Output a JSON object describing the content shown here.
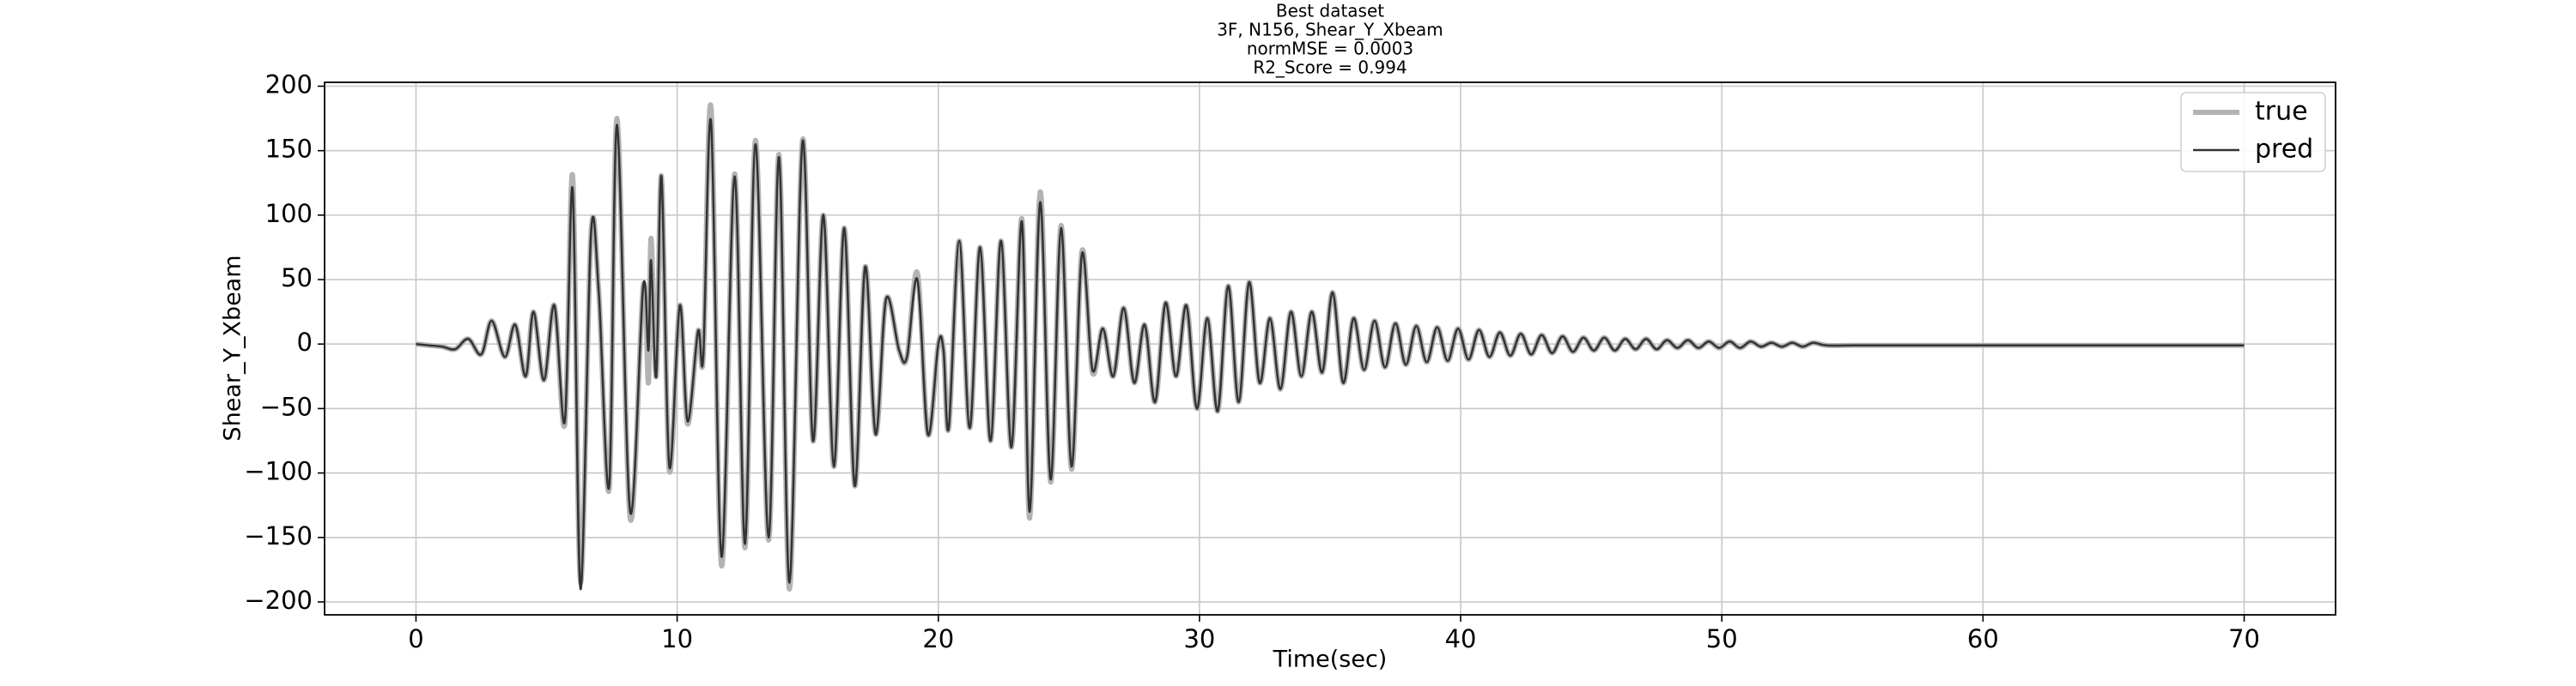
{
  "chart_data": {
    "type": "line",
    "title": [
      "Best dataset",
      "3F, N156, Shear_Y_Xbeam",
      "normMSE = 0.0003",
      "R2_Score = 0.994"
    ],
    "x_label": "Time(sec)",
    "y_label": "Shear_Y_Xbeam",
    "xlim": [
      -3.5,
      73.5
    ],
    "ylim": [
      -210,
      203
    ],
    "xticks": [
      0,
      10,
      20,
      30,
      40,
      50,
      60,
      70
    ],
    "yticks": [
      {
        "value": -200,
        "label": "−200"
      },
      {
        "value": -150,
        "label": "−150"
      },
      {
        "value": -100,
        "label": "−100"
      },
      {
        "value": -50,
        "label": "−50"
      },
      0,
      50,
      100,
      150,
      200
    ],
    "grid": true,
    "legend": "upper right",
    "x": [
      0,
      0.5,
      1.0,
      1.5,
      2.0,
      2.5,
      2.9,
      3.4,
      3.8,
      4.2,
      4.5,
      4.9,
      5.3,
      5.7,
      6.0,
      6.3,
      6.7,
      7.0,
      7.4,
      7.7,
      8.2,
      8.7,
      8.9,
      9.0,
      9.2,
      9.4,
      9.7,
      10.1,
      10.4,
      10.8,
      11.0,
      11.3,
      11.7,
      12.2,
      12.6,
      13.0,
      13.5,
      13.9,
      14.3,
      14.8,
      15.2,
      15.6,
      16.0,
      16.4,
      16.8,
      17.2,
      17.6,
      18.0,
      18.5,
      18.8,
      19.2,
      19.6,
      20.0,
      20.2,
      20.4,
      20.8,
      21.2,
      21.6,
      22.0,
      22.4,
      22.8,
      23.2,
      23.5,
      23.9,
      24.3,
      24.7,
      25.1,
      25.5,
      25.9,
      26.3,
      26.7,
      27.1,
      27.5,
      27.9,
      28.3,
      28.7,
      29.1,
      29.5,
      29.9,
      30.3,
      30.7,
      31.1,
      31.5,
      31.9,
      32.3,
      32.7,
      33.1,
      33.5,
      33.9,
      34.3,
      34.7,
      35.1,
      35.5,
      35.9,
      36.3,
      36.7,
      37.1,
      37.5,
      37.9,
      38.3,
      38.7,
      39.1,
      39.5,
      39.9,
      40.3,
      40.7,
      41.1,
      41.5,
      41.9,
      42.3,
      42.7,
      43.1,
      43.5,
      43.9,
      44.3,
      44.7,
      45.1,
      45.5,
      45.9,
      46.3,
      46.7,
      47.1,
      47.5,
      47.9,
      48.3,
      48.7,
      49.1,
      49.5,
      49.9,
      50.3,
      50.7,
      51.1,
      51.5,
      51.9,
      52.3,
      52.7,
      53.1,
      53.5,
      54,
      55,
      56,
      57,
      58,
      59,
      60,
      62,
      64,
      66,
      68,
      70
    ],
    "series": [
      {
        "name": "true",
        "color": "#b3b3b3",
        "width": 6,
        "values": [
          0,
          -1,
          -2,
          -4,
          4,
          -8,
          18,
          -10,
          15,
          -25,
          25,
          -28,
          30,
          -62,
          130,
          -185,
          85,
          40,
          -112,
          175,
          -135,
          45,
          -30,
          82,
          -25,
          130,
          -98,
          30,
          -62,
          10,
          -10,
          183,
          -172,
          132,
          -158,
          158,
          -152,
          147,
          -190,
          158,
          -75,
          100,
          -95,
          90,
          -110,
          60,
          -70,
          35,
          -5,
          -10,
          55,
          -70,
          0,
          -5,
          -65,
          80,
          -65,
          75,
          -75,
          80,
          -80,
          97,
          -135,
          118,
          -107,
          92,
          -97,
          72,
          -22,
          12,
          -25,
          28,
          -30,
          15,
          -45,
          32,
          -25,
          30,
          -50,
          20,
          -52,
          45,
          -45,
          48,
          -30,
          20,
          -35,
          25,
          -25,
          25,
          -22,
          40,
          -30,
          20,
          -20,
          18,
          -18,
          16,
          -16,
          14,
          -14,
          13,
          -13,
          12,
          -12,
          11,
          -10,
          9,
          -9,
          8,
          -8,
          7,
          -7,
          6,
          -6,
          5,
          -5,
          5,
          -5,
          4,
          -4,
          4,
          -4,
          3,
          -3,
          3,
          -3,
          2,
          -3,
          2,
          -3,
          2,
          -2,
          1,
          -2,
          1,
          -2,
          1,
          -1,
          -1,
          -1,
          -1,
          -1,
          -1,
          -1,
          -1,
          -1,
          -1,
          -1,
          -1
        ]
      },
      {
        "name": "pred",
        "color": "#333333",
        "width": 2.5,
        "values": [
          0,
          -1,
          -2,
          -4,
          4,
          -8,
          18,
          -10,
          15,
          -25,
          25,
          -28,
          30,
          -60,
          120,
          -190,
          85,
          40,
          -110,
          170,
          -130,
          45,
          -5,
          65,
          -25,
          130,
          -95,
          30,
          -60,
          10,
          -10,
          172,
          -165,
          130,
          -155,
          155,
          -150,
          145,
          -185,
          157,
          -75,
          100,
          -95,
          90,
          -110,
          60,
          -70,
          35,
          -5,
          -10,
          50,
          -70,
          0,
          -5,
          -65,
          80,
          -65,
          75,
          -75,
          80,
          -80,
          95,
          -130,
          110,
          -105,
          90,
          -95,
          70,
          -20,
          12,
          -25,
          28,
          -30,
          15,
          -45,
          32,
          -25,
          30,
          -50,
          20,
          -52,
          45,
          -45,
          48,
          -30,
          20,
          -35,
          25,
          -25,
          25,
          -22,
          40,
          -30,
          20,
          -20,
          18,
          -18,
          16,
          -16,
          14,
          -14,
          13,
          -13,
          12,
          -12,
          11,
          -10,
          9,
          -9,
          8,
          -8,
          7,
          -7,
          6,
          -6,
          5,
          -5,
          5,
          -5,
          4,
          -4,
          4,
          -4,
          3,
          -3,
          3,
          -3,
          2,
          -3,
          2,
          -3,
          2,
          -2,
          1,
          -2,
          1,
          -2,
          1,
          -1,
          -1,
          -1,
          -1,
          -1,
          -1,
          -1,
          -1,
          -1,
          -1,
          -1,
          -1
        ]
      }
    ]
  }
}
